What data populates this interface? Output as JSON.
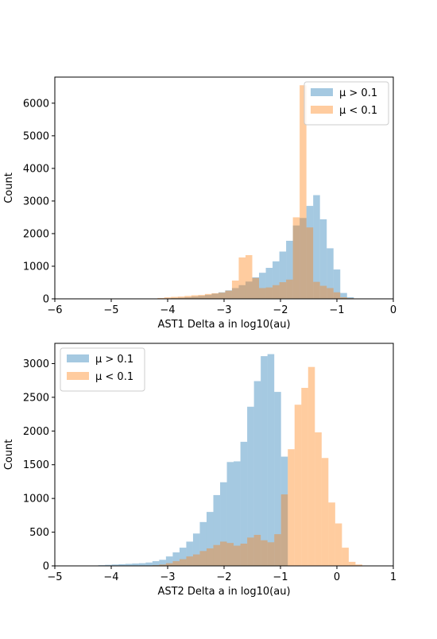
{
  "chart_data": [
    {
      "type": "bar",
      "subtype": "histogram",
      "xlabel": "AST1 Delta a in log10(au)",
      "ylabel": "Count",
      "xlim": [
        -6,
        0
      ],
      "ylim": [
        0,
        6800
      ],
      "xticks": [
        -6,
        -5,
        -4,
        -3,
        -2,
        -1,
        0
      ],
      "yticks": [
        0,
        1000,
        2000,
        3000,
        4000,
        5000,
        6000
      ],
      "legend_loc": "upper right",
      "series": [
        {
          "name": "$\\mu > 0.1$",
          "legend_label": "μ > 0.1",
          "color": "#1f77b4",
          "alpha": 0.4,
          "bins": [
            [
              -4.3,
              -4.18,
              5
            ],
            [
              -4.18,
              -4.06,
              10
            ],
            [
              -4.06,
              -3.94,
              15
            ],
            [
              -3.94,
              -3.82,
              25
            ],
            [
              -3.82,
              -3.7,
              35
            ],
            [
              -3.7,
              -3.58,
              50
            ],
            [
              -3.58,
              -3.46,
              70
            ],
            [
              -3.46,
              -3.34,
              90
            ],
            [
              -3.34,
              -3.22,
              120
            ],
            [
              -3.22,
              -3.1,
              160
            ],
            [
              -3.1,
              -2.98,
              200
            ],
            [
              -2.98,
              -2.86,
              260
            ],
            [
              -2.86,
              -2.74,
              330
            ],
            [
              -2.74,
              -2.62,
              420
            ],
            [
              -2.62,
              -2.5,
              530
            ],
            [
              -2.5,
              -2.38,
              660
            ],
            [
              -2.38,
              -2.26,
              800
            ],
            [
              -2.26,
              -2.14,
              950
            ],
            [
              -2.14,
              -2.02,
              1150
            ],
            [
              -2.02,
              -1.9,
              1450
            ],
            [
              -1.9,
              -1.78,
              1780
            ],
            [
              -1.78,
              -1.66,
              2250
            ],
            [
              -1.66,
              -1.54,
              2480
            ],
            [
              -1.54,
              -1.42,
              2850
            ],
            [
              -1.42,
              -1.3,
              3180
            ],
            [
              -1.3,
              -1.18,
              2440
            ],
            [
              -1.18,
              -1.06,
              1550
            ],
            [
              -1.06,
              -0.94,
              900
            ],
            [
              -0.94,
              -0.82,
              180
            ],
            [
              -0.82,
              -0.7,
              50
            ]
          ]
        },
        {
          "name": "$\\mu < 0.1$",
          "legend_label": "μ < 0.1",
          "color": "#ff7f0e",
          "alpha": 0.4,
          "bins": [
            [
              -4.3,
              -4.18,
              10
            ],
            [
              -4.18,
              -4.06,
              25
            ],
            [
              -4.06,
              -3.94,
              45
            ],
            [
              -3.94,
              -3.82,
              60
            ],
            [
              -3.82,
              -3.7,
              70
            ],
            [
              -3.7,
              -3.58,
              90
            ],
            [
              -3.58,
              -3.46,
              110
            ],
            [
              -3.46,
              -3.34,
              120
            ],
            [
              -3.34,
              -3.22,
              150
            ],
            [
              -3.22,
              -3.1,
              170
            ],
            [
              -3.1,
              -2.98,
              190
            ],
            [
              -2.98,
              -2.86,
              250
            ],
            [
              -2.86,
              -2.74,
              560
            ],
            [
              -2.74,
              -2.62,
              1270
            ],
            [
              -2.62,
              -2.5,
              1340
            ],
            [
              -2.5,
              -2.38,
              640
            ],
            [
              -2.38,
              -2.26,
              330
            ],
            [
              -2.26,
              -2.14,
              350
            ],
            [
              -2.14,
              -2.02,
              420
            ],
            [
              -2.02,
              -1.9,
              510
            ],
            [
              -1.9,
              -1.78,
              590
            ],
            [
              -1.78,
              -1.66,
              2500
            ],
            [
              -1.66,
              -1.54,
              6550
            ],
            [
              -1.54,
              -1.42,
              2190
            ],
            [
              -1.42,
              -1.3,
              520
            ],
            [
              -1.3,
              -1.18,
              400
            ],
            [
              -1.18,
              -1.06,
              330
            ],
            [
              -1.06,
              -0.94,
              200
            ],
            [
              -0.94,
              -0.82,
              50
            ],
            [
              -0.82,
              -0.7,
              20
            ]
          ]
        }
      ]
    },
    {
      "type": "bar",
      "subtype": "histogram",
      "xlabel": "AST2 Delta a in log10(au)",
      "ylabel": "Count",
      "xlim": [
        -5,
        1
      ],
      "ylim": [
        0,
        3300
      ],
      "xticks": [
        -5,
        -4,
        -3,
        -2,
        -1,
        0,
        1
      ],
      "yticks": [
        0,
        500,
        1000,
        1500,
        2000,
        2500,
        3000
      ],
      "legend_loc": "upper left",
      "series": [
        {
          "name": "$\\mu > 0.1$",
          "legend_label": "μ > 0.1",
          "color": "#1f77b4",
          "alpha": 0.4,
          "bins": [
            [
              -4.35,
              -4.23,
              5
            ],
            [
              -4.23,
              -4.11,
              10
            ],
            [
              -4.11,
              -3.99,
              15
            ],
            [
              -3.99,
              -3.87,
              20
            ],
            [
              -3.87,
              -3.75,
              25
            ],
            [
              -3.75,
              -3.63,
              30
            ],
            [
              -3.63,
              -3.51,
              35
            ],
            [
              -3.51,
              -3.39,
              40
            ],
            [
              -3.39,
              -3.27,
              50
            ],
            [
              -3.27,
              -3.15,
              70
            ],
            [
              -3.15,
              -3.03,
              90
            ],
            [
              -3.03,
              -2.91,
              140
            ],
            [
              -2.91,
              -2.79,
              200
            ],
            [
              -2.79,
              -2.67,
              270
            ],
            [
              -2.67,
              -2.55,
              360
            ],
            [
              -2.55,
              -2.43,
              480
            ],
            [
              -2.43,
              -2.31,
              650
            ],
            [
              -2.31,
              -2.19,
              800
            ],
            [
              -2.19,
              -2.07,
              1050
            ],
            [
              -2.07,
              -1.95,
              1240
            ],
            [
              -1.95,
              -1.83,
              1540
            ],
            [
              -1.83,
              -1.71,
              1550
            ],
            [
              -1.71,
              -1.59,
              1840
            ],
            [
              -1.59,
              -1.47,
              2360
            ],
            [
              -1.47,
              -1.35,
              2740
            ],
            [
              -1.35,
              -1.23,
              3110
            ],
            [
              -1.23,
              -1.11,
              3140
            ],
            [
              -1.11,
              -0.99,
              2580
            ],
            [
              -0.99,
              -0.87,
              1620
            ]
          ]
        },
        {
          "name": "$\\mu < 0.1$",
          "legend_label": "μ < 0.1",
          "color": "#ff7f0e",
          "alpha": 0.4,
          "bins": [
            [
              -3.27,
              -3.15,
              10
            ],
            [
              -3.15,
              -3.03,
              20
            ],
            [
              -3.03,
              -2.91,
              40
            ],
            [
              -2.91,
              -2.79,
              70
            ],
            [
              -2.79,
              -2.67,
              100
            ],
            [
              -2.67,
              -2.55,
              140
            ],
            [
              -2.55,
              -2.43,
              170
            ],
            [
              -2.43,
              -2.31,
              220
            ],
            [
              -2.31,
              -2.19,
              260
            ],
            [
              -2.19,
              -2.07,
              310
            ],
            [
              -2.07,
              -1.95,
              360
            ],
            [
              -1.95,
              -1.83,
              340
            ],
            [
              -1.83,
              -1.71,
              300
            ],
            [
              -1.71,
              -1.59,
              330
            ],
            [
              -1.59,
              -1.47,
              420
            ],
            [
              -1.47,
              -1.35,
              460
            ],
            [
              -1.35,
              -1.23,
              380
            ],
            [
              -1.23,
              -1.11,
              350
            ],
            [
              -1.11,
              -0.99,
              470
            ],
            [
              -0.99,
              -0.87,
              1060
            ],
            [
              -0.87,
              -0.75,
              1730
            ],
            [
              -0.75,
              -0.63,
              2390
            ],
            [
              -0.63,
              -0.51,
              2640
            ],
            [
              -0.51,
              -0.39,
              2950
            ],
            [
              -0.39,
              -0.27,
              1980
            ],
            [
              -0.27,
              -0.15,
              1600
            ],
            [
              -0.15,
              -0.03,
              940
            ],
            [
              -0.03,
              0.09,
              630
            ],
            [
              0.09,
              0.21,
              270
            ],
            [
              0.21,
              0.33,
              60
            ],
            [
              0.33,
              0.45,
              20
            ]
          ]
        }
      ]
    }
  ]
}
